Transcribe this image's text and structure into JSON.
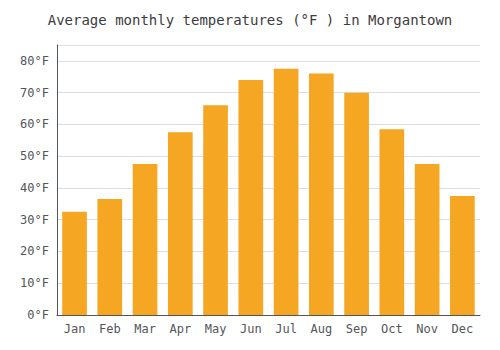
{
  "chart_data": {
    "type": "bar",
    "title": "Average monthly temperatures (°F ) in Morgantown",
    "categories": [
      "Jan",
      "Feb",
      "Mar",
      "Apr",
      "May",
      "Jun",
      "Jul",
      "Aug",
      "Sep",
      "Oct",
      "Nov",
      "Dec"
    ],
    "values": [
      32.5,
      36.5,
      47.5,
      57.5,
      66.0,
      74.0,
      77.5,
      76.0,
      70.0,
      58.5,
      47.5,
      37.5
    ],
    "color": "#F5A623",
    "ylim": [
      0,
      85
    ],
    "yticks": [
      {
        "value": 0,
        "label": "0°F"
      },
      {
        "value": 10,
        "label": "10°F"
      },
      {
        "value": 20,
        "label": "20°F"
      },
      {
        "value": 30,
        "label": "30°F"
      },
      {
        "value": 40,
        "label": "40°F"
      },
      {
        "value": 50,
        "label": "50°F"
      },
      {
        "value": 60,
        "label": "60°F"
      },
      {
        "value": 70,
        "label": "70°F"
      },
      {
        "value": 80,
        "label": "80°F"
      }
    ],
    "grid": true
  }
}
